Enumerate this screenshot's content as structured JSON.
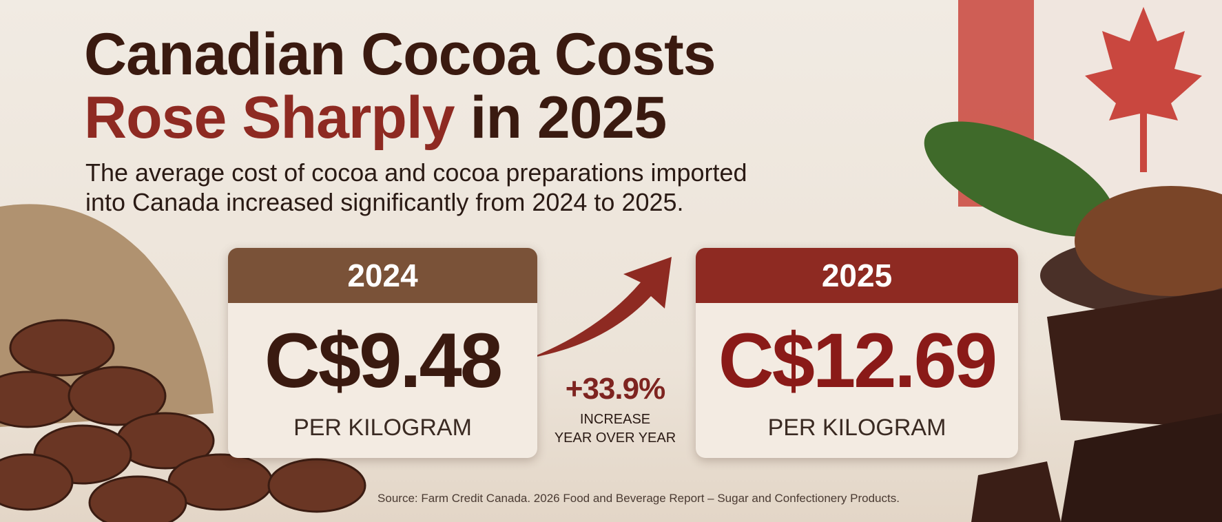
{
  "header": {
    "title_line1": "Canadian Cocoa Costs",
    "title_highlight": "Rose Sharply",
    "title_rest": "in 2025",
    "subtitle_line1": "The average cost of cocoa and cocoa preparations imported",
    "subtitle_line2": "into Canada increased significantly from 2024 to 2025."
  },
  "cards": [
    {
      "year": "2024",
      "price": "C$9.48",
      "unit": "PER KILOGRAM"
    },
    {
      "year": "2025",
      "price": "C$12.69",
      "unit": "PER KILOGRAM"
    }
  ],
  "change": {
    "value": "+33.9%",
    "label_line1": "INCREASE",
    "label_line2": "YEAR OVER YEAR"
  },
  "source": "Source: Farm Credit Canada. 2026 Food and Beverage Report – Sugar and Confectionery Products."
}
